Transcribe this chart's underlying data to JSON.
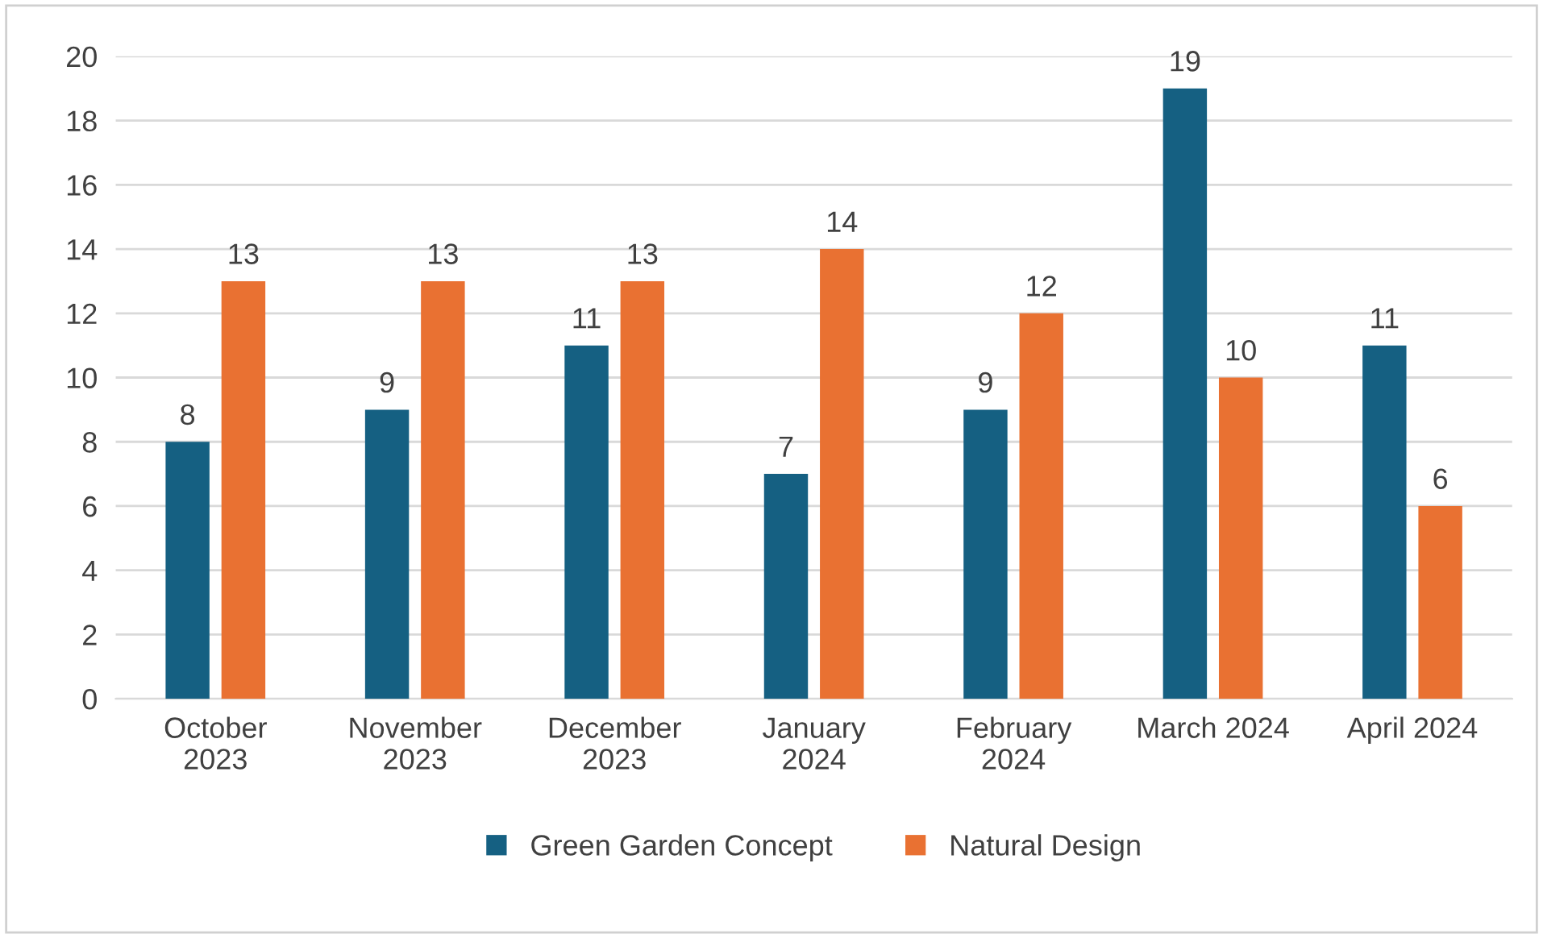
{
  "chart_data": {
    "type": "bar",
    "categories": [
      "October\n2023",
      "November\n2023",
      "December\n2023",
      "January\n2024",
      "February\n2024",
      "March 2024",
      "April 2024"
    ],
    "series": [
      {
        "name": "Green Garden Concept",
        "color": "#156082",
        "values": [
          8,
          9,
          11,
          7,
          9,
          19,
          11
        ]
      },
      {
        "name": "Natural Design",
        "color": "#e97132",
        "values": [
          13,
          13,
          13,
          14,
          12,
          10,
          6
        ]
      }
    ],
    "ylim": [
      0,
      20
    ],
    "yticks": [
      0,
      2,
      4,
      6,
      8,
      10,
      12,
      14,
      16,
      18,
      20
    ],
    "grid": "y",
    "legend": "bottom",
    "data_labels": true
  }
}
